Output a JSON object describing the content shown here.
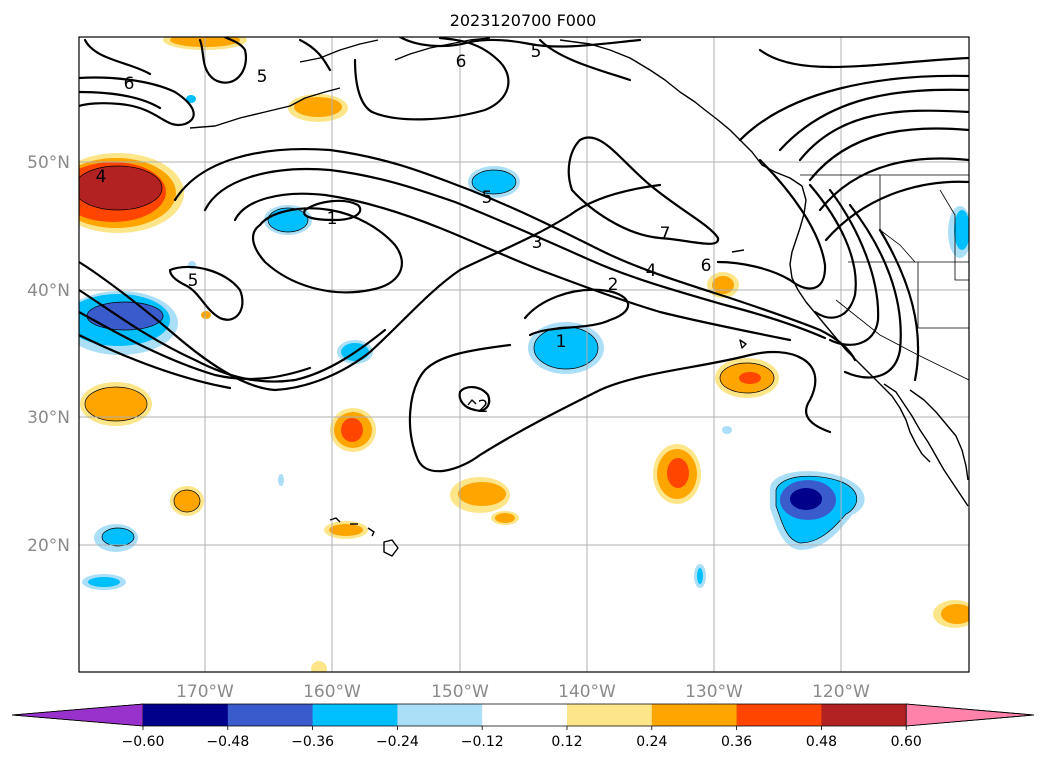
{
  "map": {
    "title": "2023120700 F000",
    "lat_labels": [
      "50°N",
      "40°N",
      "30°N",
      "20°N"
    ],
    "lon_labels": [
      "170°W",
      "160°W",
      "150°W",
      "140°W",
      "130°W",
      "120°W"
    ],
    "contour_labels": [
      "6",
      "5",
      "6",
      "5",
      "4",
      "1",
      "5",
      "5",
      "3",
      "2",
      "4",
      "6",
      "7",
      "1",
      "2"
    ],
    "colorbar": {
      "ticks": [
        "−0.60",
        "−0.48",
        "−0.36",
        "−0.24",
        "−0.12",
        "0.12",
        "0.24",
        "0.36",
        "0.48",
        "0.60"
      ],
      "colors": {
        "under": "#9932cc",
        "levels": [
          "#00008b",
          "#3a5bcc",
          "#00bfff",
          "#aadff7",
          "#ffffff",
          "#fde68a",
          "#ffa500",
          "#ff4500",
          "#b22222"
        ],
        "over": "#ff82ab"
      }
    }
  }
}
